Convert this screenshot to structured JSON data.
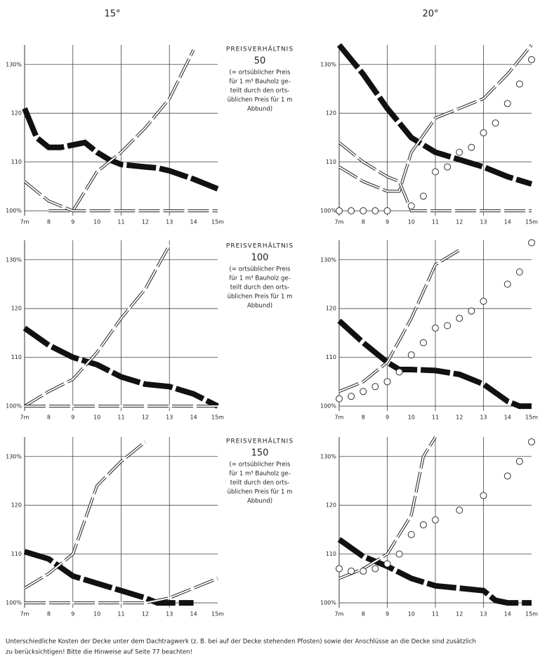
{
  "columns": [
    "15°",
    "20°"
  ],
  "notes": [
    {
      "heading": "PREISVERHÄLTNIS",
      "number": "50",
      "lines": [
        "(= ortsüblicher Preis",
        "für 1 m³ Bauholz ge-",
        "teilt durch den orts-",
        "üblichen Preis für 1 m",
        "Abbund)"
      ]
    },
    {
      "heading": "PREISVERHÄLTNIS",
      "number": "100",
      "lines": [
        "(= ortsüblicher Preis",
        "für 1 m³ Bauholz ge-",
        "teilt durch den orts-",
        "üblichen Preis für 1 m",
        "Abbund)"
      ]
    },
    {
      "heading": "PREISVERHÄLTNIS",
      "number": "150",
      "lines": [
        "(= ortsüblicher Preis",
        "für 1 m³ Bauholz ge-",
        "teilt durch den orts-",
        "üblichen Preis für 1 m",
        "Abbund)"
      ]
    }
  ],
  "caption": [
    "Unterschiedliche Kosten der Decke unter dem Dachtragwerk (z. B. bei auf der Decke stehenden Pfosten) sowie der Anschlüsse an die Decke sind zusätzlich",
    "zu berücksichtigen! Bitte die Hinweise auf Seite 77 beachten!"
  ],
  "chart_data": [
    {
      "type": "line",
      "xlim": [
        7,
        15
      ],
      "ylim": [
        99,
        134
      ],
      "xgrid": [
        9,
        11,
        13
      ],
      "xticks": [
        {
          "value": 7,
          "label": "7m"
        },
        8,
        9,
        10,
        11,
        12,
        13,
        14,
        {
          "value": 15,
          "label": "15m"
        }
      ],
      "yticks": [
        {
          "value": 100,
          "label": "100%"
        },
        110,
        120,
        {
          "value": 130,
          "label": "130%"
        }
      ],
      "series": [
        {
          "style": "thick",
          "color": "#111111",
          "x": [
            7,
            7.5,
            8,
            8.5,
            9,
            9.5,
            10,
            10.5,
            11,
            12,
            12.5,
            13,
            14,
            15
          ],
          "values": [
            121,
            115,
            113,
            113,
            113.5,
            114,
            112,
            110.5,
            109.5,
            109,
            108.8,
            108.2,
            106.5,
            104.5
          ]
        },
        {
          "style": "double",
          "color": "#222222",
          "x": [
            8,
            9,
            10,
            11,
            12,
            13,
            14
          ],
          "values": [
            100,
            100,
            108,
            112,
            117,
            123,
            133
          ]
        },
        {
          "style": "double",
          "color": "#222222",
          "x": [
            7,
            8,
            9,
            15
          ],
          "values": [
            106,
            102,
            100,
            100
          ]
        }
      ]
    },
    {
      "type": "line",
      "xlim": [
        7,
        15
      ],
      "ylim": [
        99,
        134
      ],
      "xgrid": [
        9,
        11,
        13
      ],
      "xticks": [
        {
          "value": 7,
          "label": "7m"
        },
        8,
        9,
        10,
        11,
        12,
        13,
        14,
        {
          "value": 15,
          "label": "15m"
        }
      ],
      "yticks": [
        {
          "value": 100,
          "label": "100%"
        },
        110,
        120,
        {
          "value": 130,
          "label": "130%"
        }
      ],
      "series": [
        {
          "style": "thick",
          "color": "#111111",
          "x": [
            7,
            8,
            9,
            10,
            11,
            12,
            13,
            14,
            15
          ],
          "values": [
            134,
            128,
            121,
            115,
            112,
            110.5,
            109,
            107,
            105.5
          ]
        },
        {
          "style": "double",
          "color": "#222222",
          "x": [
            7,
            8,
            9,
            9.5,
            10,
            11,
            12,
            13,
            14,
            15
          ],
          "values": [
            109,
            106,
            104,
            104,
            112,
            119,
            121,
            123,
            128,
            134
          ]
        },
        {
          "style": "double",
          "color": "#222222",
          "x": [
            7,
            8,
            9,
            9.5,
            10,
            15
          ],
          "values": [
            114,
            110,
            107,
            106,
            100,
            100
          ]
        },
        {
          "style": "circles",
          "color": "#333333",
          "x": [
            7,
            7.5,
            8,
            8.5,
            9,
            10,
            10.5,
            11,
            11.5,
            12,
            12.5,
            13,
            13.5,
            14,
            14.5,
            15
          ],
          "values": [
            100,
            100,
            100,
            100,
            100,
            101,
            103,
            108,
            109,
            112,
            113,
            116,
            118,
            122,
            126,
            131
          ]
        }
      ]
    },
    {
      "type": "line",
      "xlim": [
        7,
        15
      ],
      "ylim": [
        99,
        134
      ],
      "xgrid": [
        9,
        11,
        13
      ],
      "xticks": [
        {
          "value": 7,
          "label": "7m"
        },
        8,
        9,
        10,
        11,
        12,
        13,
        14,
        {
          "value": 15,
          "label": "15m"
        }
      ],
      "yticks": [
        {
          "value": 100,
          "label": "100%"
        },
        110,
        120,
        {
          "value": 130,
          "label": "130%"
        }
      ],
      "series": [
        {
          "style": "thick",
          "color": "#111111",
          "x": [
            7,
            8,
            9,
            10,
            11,
            12,
            13,
            14,
            15
          ],
          "values": [
            116,
            112.5,
            110,
            108.5,
            106,
            104.5,
            104,
            102.5,
            100
          ]
        },
        {
          "style": "double",
          "color": "#222222",
          "x": [
            7,
            8,
            9,
            10,
            11,
            12,
            13
          ],
          "values": [
            100,
            103,
            105.5,
            111,
            118,
            124,
            133
          ]
        },
        {
          "style": "double",
          "color": "#222222",
          "x": [
            7,
            15
          ],
          "values": [
            100,
            100
          ]
        }
      ]
    },
    {
      "type": "line",
      "xlim": [
        7,
        15
      ],
      "ylim": [
        99,
        134
      ],
      "xgrid": [
        9,
        11,
        13
      ],
      "xticks": [
        {
          "value": 7,
          "label": "7m"
        },
        8,
        9,
        10,
        11,
        12,
        13,
        14,
        {
          "value": 15,
          "label": "15m"
        }
      ],
      "yticks": [
        {
          "value": 100,
          "label": "100%"
        },
        110,
        120,
        {
          "value": 130,
          "label": "130%"
        }
      ],
      "series": [
        {
          "style": "thick",
          "color": "#111111",
          "x": [
            7,
            8,
            9,
            9.5,
            10,
            11,
            12,
            13,
            14,
            14.5,
            15
          ],
          "values": [
            117.5,
            113,
            109,
            107.5,
            107.5,
            107.3,
            106.5,
            104.5,
            101,
            100,
            100
          ]
        },
        {
          "style": "double",
          "color": "#222222",
          "x": [
            7,
            8,
            9,
            10,
            11,
            12
          ],
          "values": [
            103,
            105,
            109,
            118,
            129,
            132
          ]
        },
        {
          "style": "circles",
          "color": "#333333",
          "x": [
            7,
            7.5,
            8,
            8.5,
            9,
            9.5,
            10,
            10.5,
            11,
            11.5,
            12,
            12.5,
            13,
            14,
            14.5,
            15
          ],
          "values": [
            101.5,
            102,
            103,
            104,
            105,
            107,
            110.5,
            113,
            116,
            116.5,
            118,
            119.5,
            121.5,
            125,
            127.5,
            133.5
          ]
        }
      ]
    },
    {
      "type": "line",
      "xlim": [
        7,
        15
      ],
      "ylim": [
        99,
        134
      ],
      "xgrid": [
        9,
        11,
        13
      ],
      "xticks": [
        {
          "value": 7,
          "label": "7m"
        },
        8,
        9,
        10,
        11,
        12,
        13,
        14,
        {
          "value": 15,
          "label": "15m"
        }
      ],
      "yticks": [
        {
          "value": 100,
          "label": "100%"
        },
        110,
        120,
        {
          "value": 130,
          "label": "130%"
        }
      ],
      "series": [
        {
          "style": "thick",
          "color": "#111111",
          "x": [
            7,
            8,
            9,
            10,
            11,
            12,
            12.5,
            13,
            14
          ],
          "values": [
            110.5,
            109,
            105.5,
            104,
            102.5,
            101,
            100,
            100,
            100
          ]
        },
        {
          "style": "double",
          "color": "#222222",
          "x": [
            7,
            8,
            9,
            10,
            11,
            12
          ],
          "values": [
            103,
            106,
            110,
            124,
            129,
            133
          ]
        },
        {
          "style": "double",
          "color": "#222222",
          "x": [
            7,
            12,
            13,
            14,
            15
          ],
          "values": [
            100,
            100,
            101,
            103,
            105
          ]
        }
      ]
    },
    {
      "type": "line",
      "xlim": [
        7,
        15
      ],
      "ylim": [
        99,
        134
      ],
      "xgrid": [
        9,
        11,
        13
      ],
      "xticks": [
        {
          "value": 7,
          "label": "7m"
        },
        8,
        9,
        10,
        11,
        12,
        13,
        14,
        {
          "value": 15,
          "label": "15m"
        }
      ],
      "yticks": [
        {
          "value": 100,
          "label": "100%"
        },
        110,
        120,
        {
          "value": 130,
          "label": "130%"
        }
      ],
      "series": [
        {
          "style": "thick",
          "color": "#111111",
          "x": [
            7,
            8,
            9,
            10,
            11,
            12,
            13,
            13.5,
            14,
            15
          ],
          "values": [
            113,
            109.5,
            107.5,
            105,
            103.5,
            103,
            102.5,
            100.5,
            100,
            100
          ]
        },
        {
          "style": "double",
          "color": "#222222",
          "x": [
            7,
            8,
            9,
            10,
            10.5,
            11
          ],
          "values": [
            105,
            107,
            110,
            118,
            130,
            134
          ]
        },
        {
          "style": "circles",
          "color": "#333333",
          "x": [
            7,
            7.5,
            8,
            8.5,
            9,
            9.5,
            10,
            10.5,
            11,
            12,
            13,
            14,
            14.5,
            15
          ],
          "values": [
            107,
            106.5,
            106.5,
            107,
            108,
            110,
            114,
            116,
            117,
            119,
            122,
            126,
            129,
            133
          ]
        }
      ]
    }
  ]
}
